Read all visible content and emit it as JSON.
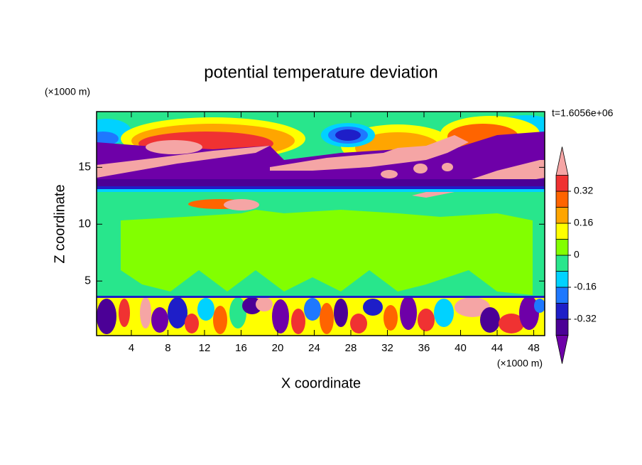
{
  "chart_data": {
    "type": "contour",
    "title": "potential temperature deviation",
    "x_label": "X coordinate",
    "y_label": "Z coordinate",
    "x_unit": "(×1000 m)",
    "y_unit": "(×1000 m)",
    "annotation": "t=1.6056e+06",
    "xlim": [
      0.2,
      49.2
    ],
    "ylim": [
      0.2,
      19.9
    ],
    "xticks": [
      4,
      8,
      12,
      16,
      20,
      24,
      28,
      32,
      36,
      40,
      44,
      48
    ],
    "yticks": [
      5,
      10,
      15
    ],
    "levels": [
      -0.4,
      -0.32,
      -0.24,
      -0.16,
      -0.08,
      0,
      0.08,
      0.16,
      0.24,
      0.32,
      0.4
    ],
    "colors": [
      "#6e00a8",
      "#4b0096",
      "#1e1ec8",
      "#1e78ff",
      "#00d2ff",
      "#28e68c",
      "#82ff00",
      "#ffff00",
      "#ffa500",
      "#ff6400",
      "#f03232",
      "#f5a5a5"
    ],
    "colorbar_ticks": [
      0.32,
      0.16,
      0,
      -0.16,
      -0.32
    ]
  }
}
